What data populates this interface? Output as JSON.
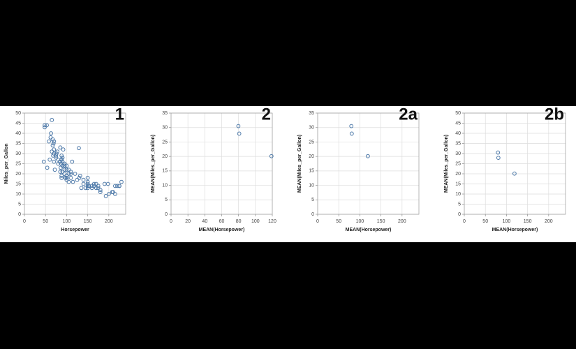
{
  "chart_data": [
    {
      "type": "scatter",
      "title": "1",
      "x_label": "Horsepower",
      "y_label": "Miles_per_Gallon",
      "color": "#4c78a8",
      "grid": true,
      "xlim": [
        0,
        240
      ],
      "ylim": [
        0,
        50
      ],
      "xticks": [
        0,
        50,
        100,
        150,
        200
      ],
      "yticks": [
        0,
        5,
        10,
        15,
        20,
        25,
        30,
        35,
        40,
        45,
        50
      ],
      "x": [
        130,
        165,
        150,
        150,
        140,
        198,
        220,
        215,
        225,
        190,
        170,
        160,
        150,
        225,
        95,
        95,
        97,
        85,
        88,
        46,
        87,
        90,
        95,
        113,
        90,
        215,
        200,
        210,
        193,
        88,
        90,
        95,
        100,
        105,
        100,
        88,
        100,
        165,
        175,
        153,
        150,
        180,
        170,
        175,
        110,
        72,
        100,
        88,
        86,
        90,
        70,
        76,
        65,
        69,
        60,
        70,
        95,
        80,
        54,
        208,
        230,
        70,
        67,
        53,
        48,
        48,
        65,
        62,
        75,
        110,
        129,
        85,
        67,
        100,
        105,
        140,
        150,
        160,
        132,
        84,
        78,
        92,
        105,
        120,
        63,
        58,
        70,
        88,
        110,
        125,
        180,
        145,
        95,
        100,
        80,
        68,
        75,
        90,
        115,
        135
      ],
      "y": [
        18,
        15,
        18,
        16,
        17,
        15,
        14,
        14,
        14,
        15,
        15,
        14,
        15,
        14,
        24,
        22,
        18,
        21,
        27,
        26,
        25,
        24,
        25,
        26,
        21,
        10,
        10,
        11,
        9,
        27,
        28,
        25,
        19,
        16,
        17,
        19,
        18,
        14,
        14,
        14,
        14,
        12,
        13,
        13,
        18,
        22,
        19,
        18,
        23,
        28,
        30,
        30,
        31,
        35,
        27,
        26,
        24,
        25,
        23,
        11,
        16,
        36,
        34,
        44,
        43,
        44,
        46.6,
        38,
        28,
        20,
        32.7,
        33,
        37,
        22,
        20,
        15,
        13,
        13,
        19,
        26,
        31,
        32,
        22,
        20,
        40,
        36,
        32,
        29,
        21,
        17,
        11,
        13,
        20,
        24,
        27,
        29,
        29,
        26,
        16,
        13
      ]
    },
    {
      "type": "scatter",
      "title": "2",
      "x_label": "MEAN(Horsepower)",
      "y_label": "MEAN(Miles_per_Gallon)",
      "color": "#4c78a8",
      "grid": true,
      "xlim": [
        0,
        120
      ],
      "ylim": [
        0,
        35
      ],
      "xticks": [
        0,
        20,
        40,
        60,
        80,
        100,
        120
      ],
      "yticks": [
        0,
        5,
        10,
        15,
        20,
        25,
        30,
        35
      ],
      "x": [
        119.0,
        80.8,
        79.8
      ],
      "y": [
        20.1,
        27.9,
        30.5
      ]
    },
    {
      "type": "scatter",
      "title": "2a",
      "x_label": "MEAN(Horsepower)",
      "y_label": "MEAN(Miles_per_Gallon)",
      "color": "#4c78a8",
      "grid": true,
      "xlim": [
        0,
        240
      ],
      "ylim": [
        0,
        35
      ],
      "xticks": [
        0,
        50,
        100,
        150,
        200
      ],
      "yticks": [
        0,
        5,
        10,
        15,
        20,
        25,
        30,
        35
      ],
      "x": [
        119.0,
        80.8,
        79.8
      ],
      "y": [
        20.1,
        27.9,
        30.5
      ]
    },
    {
      "type": "scatter",
      "title": "2b",
      "x_label": "MEAN(Horsepower)",
      "y_label": "MEAN(Miles_per_Gallon)",
      "color": "#4c78a8",
      "grid": true,
      "xlim": [
        0,
        240
      ],
      "ylim": [
        0,
        50
      ],
      "xticks": [
        0,
        50,
        100,
        150,
        200
      ],
      "yticks": [
        0,
        5,
        10,
        15,
        20,
        25,
        30,
        35,
        40,
        45,
        50
      ],
      "x": [
        119.0,
        80.8,
        79.8
      ],
      "y": [
        20.1,
        27.9,
        30.5
      ]
    }
  ]
}
